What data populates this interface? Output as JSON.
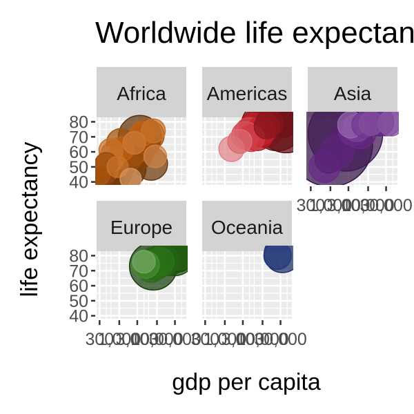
{
  "colors": {
    "panel_bg": "#ebebeb",
    "grid": "#ffffff",
    "strip_bg": "#d3d3d3",
    "title_text": "#000000",
    "tick_text": "#4d4d4d",
    "tick_mark": "#333333"
  },
  "chart_data": {
    "type": "scatter",
    "title": "Worldwide life expectancy",
    "xlabel": "gdp per capita",
    "ylabel": "life expectancy",
    "x_scale": "log",
    "xlim": [
      250,
      60000
    ],
    "ylim": [
      38,
      83
    ],
    "x_ticks": [
      300,
      1000,
      3000,
      10000,
      30000
    ],
    "x_tick_labels": [
      "300",
      "1,000",
      "3,000",
      "10,000",
      "30,000"
    ],
    "y_ticks": [
      40,
      50,
      60,
      70,
      80
    ],
    "y_tick_labels": [
      "40",
      "50",
      "60",
      "70",
      "80"
    ],
    "size_encoding": "population",
    "grid": true,
    "legend": "none",
    "facets": [
      {
        "name": "Africa",
        "base_color": "#c06010",
        "points": [
          {
            "x": 300,
            "y": 45,
            "pop": 3,
            "shade": 0.6
          },
          {
            "x": 350,
            "y": 42,
            "pop": 5,
            "shade": 0.8
          },
          {
            "x": 400,
            "y": 48,
            "pop": 8,
            "shade": 0.5
          },
          {
            "x": 450,
            "y": 52,
            "pop": 4,
            "shade": 0.7
          },
          {
            "x": 500,
            "y": 41,
            "pop": 12,
            "shade": 0.9
          },
          {
            "x": 600,
            "y": 55,
            "pop": 6,
            "shade": 0.3
          },
          {
            "x": 700,
            "y": 47,
            "pop": 20,
            "shade": 0.85
          },
          {
            "x": 800,
            "y": 58,
            "pop": 10,
            "shade": 0.6
          },
          {
            "x": 900,
            "y": 50,
            "pop": 3,
            "shade": 0.4
          },
          {
            "x": 1000,
            "y": 53,
            "pop": 15,
            "shade": 0.75
          },
          {
            "x": 1200,
            "y": 62,
            "pop": 5,
            "shade": 0.5
          },
          {
            "x": 1500,
            "y": 49,
            "pop": 25,
            "shade": 0.9
          },
          {
            "x": 1800,
            "y": 56,
            "pop": 7,
            "shade": 0.7
          },
          {
            "x": 2200,
            "y": 60,
            "pop": 9,
            "shade": 0.55
          },
          {
            "x": 2500,
            "y": 66,
            "pop": 4,
            "shade": 0.35
          },
          {
            "x": 3000,
            "y": 58,
            "pop": 11,
            "shade": 0.8
          },
          {
            "x": 3500,
            "y": 70,
            "pop": 30,
            "shade": 0.95
          },
          {
            "x": 4000,
            "y": 72,
            "pop": 6,
            "shade": 0.5
          },
          {
            "x": 5000,
            "y": 65,
            "pop": 8,
            "shade": 0.7
          },
          {
            "x": 6000,
            "y": 71,
            "pop": 12,
            "shade": 0.6
          },
          {
            "x": 7000,
            "y": 52,
            "pop": 14,
            "shade": 0.9
          },
          {
            "x": 8000,
            "y": 74,
            "pop": 5,
            "shade": 0.4
          },
          {
            "x": 9000,
            "y": 57,
            "pop": 4,
            "shade": 0.3
          },
          {
            "x": 2000,
            "y": 42,
            "pop": 3,
            "shade": 0.2
          },
          {
            "x": 600,
            "y": 61,
            "pop": 5,
            "shade": 0.4
          },
          {
            "x": 1100,
            "y": 66,
            "pop": 9,
            "shade": 0.65
          }
        ]
      },
      {
        "name": "Americas",
        "base_color": "#c8202a",
        "points": [
          {
            "x": 1500,
            "y": 62,
            "pop": 6,
            "shade": 0.1
          },
          {
            "x": 2500,
            "y": 67,
            "pop": 5,
            "shade": 0.2
          },
          {
            "x": 3500,
            "y": 71,
            "pop": 8,
            "shade": 0.3
          },
          {
            "x": 4500,
            "y": 73,
            "pop": 10,
            "shade": 0.35
          },
          {
            "x": 5000,
            "y": 69,
            "pop": 7,
            "shade": 0.4
          },
          {
            "x": 6000,
            "y": 75,
            "pop": 12,
            "shade": 0.55
          },
          {
            "x": 7000,
            "y": 72,
            "pop": 15,
            "shade": 0.6
          },
          {
            "x": 8000,
            "y": 76,
            "pop": 20,
            "shade": 0.7
          },
          {
            "x": 9000,
            "y": 74,
            "pop": 9,
            "shade": 0.5
          },
          {
            "x": 11000,
            "y": 78,
            "pop": 35,
            "shade": 0.85
          },
          {
            "x": 13000,
            "y": 77,
            "pop": 6,
            "shade": 0.75
          },
          {
            "x": 15000,
            "y": 79,
            "pop": 8,
            "shade": 0.8
          },
          {
            "x": 25000,
            "y": 78,
            "pop": 50,
            "shade": 0.95
          },
          {
            "x": 35000,
            "y": 80,
            "pop": 12,
            "shade": 0.9
          },
          {
            "x": 42000,
            "y": 78,
            "pop": 60,
            "shade": 1.0
          }
        ]
      },
      {
        "name": "Asia",
        "base_color": "#6a2a8a",
        "points": [
          {
            "x": 1000,
            "y": 65,
            "pop": 160,
            "shade": 0.95
          },
          {
            "x": 2500,
            "y": 72,
            "pop": 120,
            "shade": 0.85
          },
          {
            "x": 1500,
            "y": 60,
            "pop": 15,
            "shade": 0.6
          },
          {
            "x": 3000,
            "y": 68,
            "pop": 20,
            "shade": 0.7
          },
          {
            "x": 4000,
            "y": 74,
            "pop": 10,
            "shade": 0.5
          },
          {
            "x": 5000,
            "y": 76,
            "pop": 8,
            "shade": 0.4
          },
          {
            "x": 6000,
            "y": 73,
            "pop": 14,
            "shade": 0.55
          },
          {
            "x": 8000,
            "y": 78,
            "pop": 6,
            "shade": 0.45
          },
          {
            "x": 12000,
            "y": 79,
            "pop": 5,
            "shade": 0.35
          },
          {
            "x": 20000,
            "y": 80,
            "pop": 9,
            "shade": 0.6
          },
          {
            "x": 30000,
            "y": 81,
            "pop": 12,
            "shade": 0.4
          },
          {
            "x": 40000,
            "y": 79,
            "pop": 6,
            "shade": 0.3
          },
          {
            "x": 700,
            "y": 50,
            "pop": 12,
            "shade": 0.5
          },
          {
            "x": 900,
            "y": 55,
            "pop": 8,
            "shade": 0.65
          },
          {
            "x": 3500,
            "y": 78,
            "pop": 7,
            "shade": 0.25
          }
        ]
      },
      {
        "name": "Europe",
        "base_color": "#2e7a18",
        "points": [
          {
            "x": 5000,
            "y": 74,
            "pop": 8,
            "shade": 0.4
          },
          {
            "x": 7000,
            "y": 72,
            "pop": 10,
            "shade": 0.6
          },
          {
            "x": 9000,
            "y": 75,
            "pop": 14,
            "shade": 0.7
          },
          {
            "x": 12000,
            "y": 76,
            "pop": 9,
            "shade": 0.55
          },
          {
            "x": 15000,
            "y": 77,
            "pop": 12,
            "shade": 0.65
          },
          {
            "x": 20000,
            "y": 79,
            "pop": 20,
            "shade": 0.75
          },
          {
            "x": 25000,
            "y": 80,
            "pop": 15,
            "shade": 0.8
          },
          {
            "x": 30000,
            "y": 80,
            "pop": 25,
            "shade": 0.85
          },
          {
            "x": 35000,
            "y": 81,
            "pop": 18,
            "shade": 0.9
          },
          {
            "x": 40000,
            "y": 80,
            "pop": 10,
            "shade": 0.7
          },
          {
            "x": 8000,
            "y": 73,
            "pop": 40,
            "shade": 0.95
          },
          {
            "x": 4500,
            "y": 76,
            "pop": 4,
            "shade": 0.2
          }
        ]
      },
      {
        "name": "Oceania",
        "base_color": "#2c4aa0",
        "points": [
          {
            "x": 25000,
            "y": 80,
            "pop": 8,
            "shade": 0.7
          },
          {
            "x": 34000,
            "y": 81,
            "pop": 20,
            "shade": 0.85
          }
        ]
      }
    ]
  }
}
